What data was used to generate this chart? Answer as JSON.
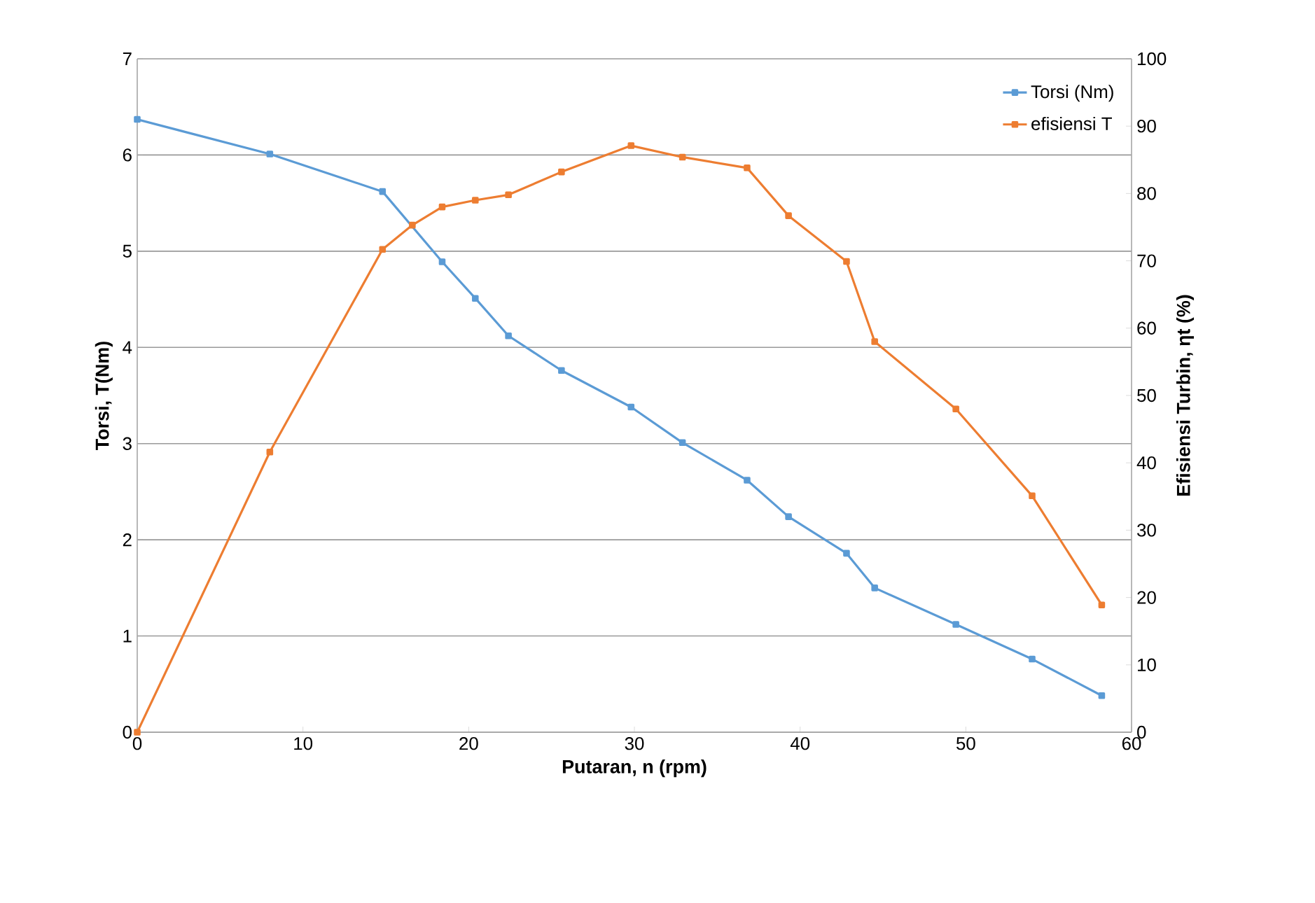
{
  "chart_data": {
    "type": "line",
    "xlabel": "Putaran, n (rpm)",
    "ylabel": "Torsi, T(Nm)",
    "y2label": "Efisiensi Turbin, ηt (%)",
    "xlim": [
      0,
      60
    ],
    "xticks": [
      0,
      10,
      20,
      30,
      40,
      50,
      60
    ],
    "ylim": [
      0,
      7
    ],
    "yticks": [
      0,
      1,
      2,
      3,
      4,
      5,
      6,
      7
    ],
    "y2lim": [
      0,
      100
    ],
    "y2ticks": [
      0,
      10,
      20,
      30,
      40,
      50,
      60,
      70,
      80,
      90,
      100
    ],
    "grid": "y",
    "legend": "top right",
    "marker": "square",
    "line_style": "solid",
    "series": [
      {
        "name": "Torsi (Nm)",
        "color": "#5b9bd5",
        "x": [
          0,
          8.0,
          14.8,
          18.4,
          20.4,
          22.4,
          25.6,
          29.8,
          32.9,
          36.8,
          39.3,
          42.8,
          44.5,
          49.4,
          54.0,
          58.2
        ],
        "values": [
          6.37,
          6.01,
          5.62,
          4.89,
          4.51,
          4.12,
          3.76,
          3.38,
          3.01,
          2.62,
          2.24,
          1.86,
          1.5,
          1.12,
          0.76,
          0.38
        ]
      },
      {
        "name": "efisiensi T",
        "color": "#ed7d31",
        "axis": "y2",
        "x": [
          0,
          8.0,
          14.8,
          16.6,
          18.4,
          20.4,
          22.4,
          25.6,
          29.8,
          32.9,
          36.8,
          39.3,
          42.8,
          44.5,
          49.4,
          54.0,
          58.2
        ],
        "values": [
          0,
          41.6,
          71.7,
          75.3,
          78.0,
          79.0,
          79.8,
          83.2,
          87.1,
          85.4,
          83.8,
          76.7,
          69.9,
          58.0,
          48.0,
          35.1,
          18.9
        ]
      }
    ]
  }
}
